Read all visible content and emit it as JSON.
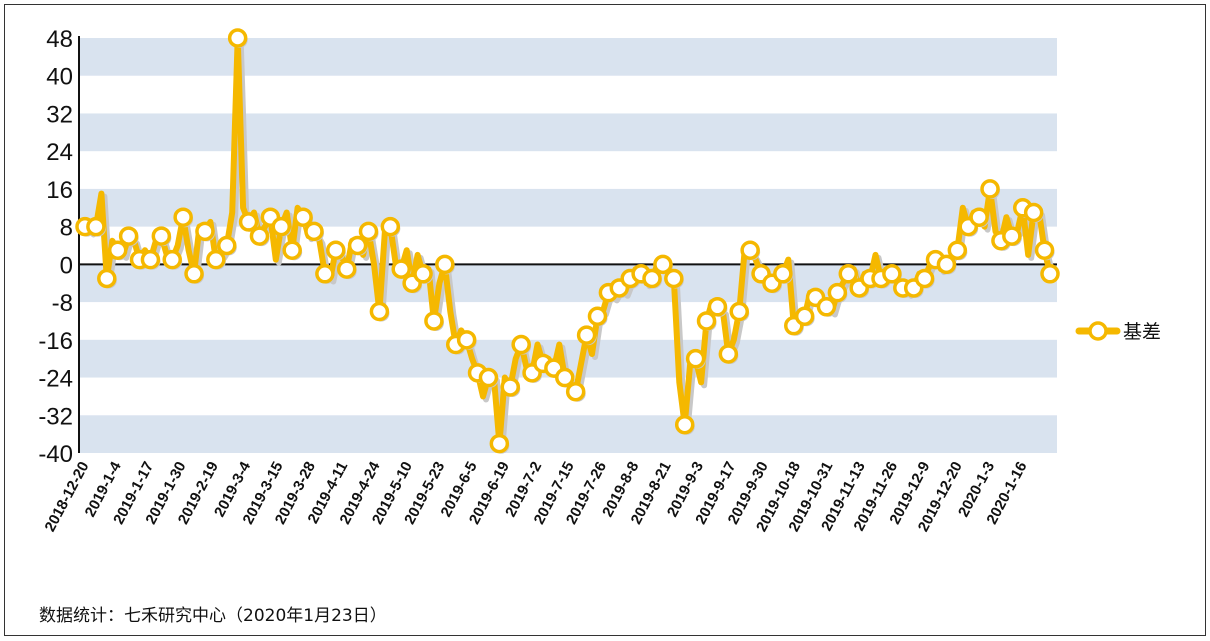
{
  "colors": {
    "series": "#f5b800",
    "band": "#d9e3ef",
    "marker_fill": "#ffffff",
    "shadow": "#c8c8c8",
    "axis": "#111111"
  },
  "source_note": "数据统计：七禾研究中心（2020年1月23日）",
  "chart_data": {
    "type": "line",
    "title": "",
    "xlabel": "",
    "ylabel": "",
    "ylim": [
      -40,
      48
    ],
    "yticks": [
      48,
      40,
      32,
      24,
      16,
      8,
      0,
      -8,
      -16,
      -24,
      -32,
      -40
    ],
    "ytick_labels": [
      "48",
      "40",
      "32",
      "24",
      "16",
      "8",
      "0",
      "-8",
      "-16",
      "-24",
      "-32",
      "-40"
    ],
    "background": "horizontal alternating bands",
    "zero_line": true,
    "legend_position": "right",
    "xtick_labels": [
      "2018-12-20",
      "2019-1-4",
      "2019-1-17",
      "2019-1-30",
      "2019-2-19",
      "2019-3-4",
      "2019-3-15",
      "2019-3-28",
      "2019-4-11",
      "2019-4-24",
      "2019-5-10",
      "2019-5-23",
      "2019-6-5",
      "2019-6-19",
      "2019-7-2",
      "2019-7-15",
      "2019-7-26",
      "2019-8-8",
      "2019-8-21",
      "2019-9-3",
      "2019-9-17",
      "2019-9-30",
      "2019-10-18",
      "2019-10-31",
      "2019-11-13",
      "2019-11-26",
      "2019-12-9",
      "2019-12-20",
      "2020-1-3",
      "2020-1-16"
    ],
    "series": [
      {
        "name": "基差",
        "values": [
          8,
          7,
          8,
          15,
          -3,
          5,
          3,
          2,
          6,
          5,
          1,
          3,
          1,
          5,
          6,
          2,
          1,
          4,
          10,
          3,
          -2,
          8,
          7,
          9,
          1,
          2,
          4,
          11,
          48,
          12,
          9,
          11,
          6,
          8,
          10,
          1,
          8,
          11,
          3,
          12,
          10,
          6,
          7,
          5,
          -2,
          -3,
          3,
          2,
          -1,
          5,
          4,
          2,
          7,
          0,
          -10,
          7,
          8,
          0,
          -1,
          3,
          -4,
          2,
          -2,
          -1,
          -12,
          -4,
          0,
          -10,
          -17,
          -14,
          -16,
          -20,
          -23,
          -28,
          -24,
          -24,
          -38,
          -24,
          -26,
          -20,
          -17,
          -22,
          -23,
          -17,
          -21,
          -20,
          -22,
          -17,
          -24,
          -26,
          -27,
          -21,
          -15,
          -19,
          -11,
          -10,
          -6,
          -7,
          -5,
          -6,
          -3,
          -1,
          -2,
          -4,
          -3,
          0,
          0,
          -1,
          -3,
          -25,
          -34,
          -21,
          -20,
          -25,
          -12,
          -8,
          -9,
          -10,
          -19,
          -16,
          -10,
          3,
          3,
          1,
          -2,
          -3,
          -4,
          -2,
          -2,
          1,
          -13,
          -12,
          -11,
          -6,
          -7,
          -8,
          -9,
          -10,
          -6,
          -4,
          -2,
          -1,
          -5,
          -2,
          -3,
          2,
          -3,
          -1,
          -2,
          -4,
          -5,
          -6,
          -5,
          -2,
          -3,
          0,
          1,
          -1,
          0,
          2,
          3,
          12,
          8,
          11,
          10,
          8,
          16,
          7,
          5,
          10,
          6,
          7,
          12,
          2,
          11,
          11,
          3,
          -2
        ]
      }
    ]
  }
}
